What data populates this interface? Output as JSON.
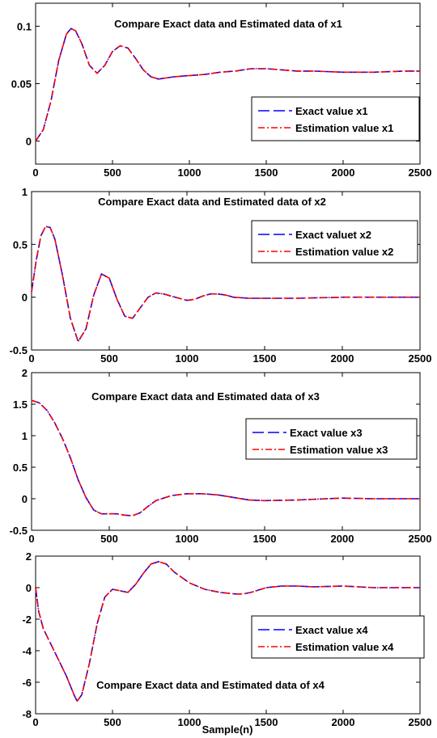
{
  "figure": {
    "xlabel": "Sample(n)"
  },
  "colors": {
    "exact": "#0000ff",
    "estimated": "#ff0000",
    "axis": "#000000",
    "background": "#ffffff"
  },
  "chart_data": [
    {
      "type": "line",
      "title": "Compare Exact data and Estimated data of x1",
      "xlabel": "",
      "ylabel": "",
      "xlim": [
        0,
        2500
      ],
      "ylim": [
        -0.02,
        0.12
      ],
      "xticks": [
        0,
        500,
        1000,
        1500,
        2000,
        2500
      ],
      "yticks": [
        0,
        0.05,
        0.1
      ],
      "ytick_labels": [
        "0",
        "0.05",
        "0.1"
      ],
      "grid": false,
      "legend_position": "lower-right",
      "x": [
        0,
        50,
        100,
        150,
        200,
        230,
        260,
        300,
        350,
        400,
        450,
        500,
        550,
        600,
        650,
        700,
        750,
        800,
        850,
        900,
        1000,
        1100,
        1200,
        1300,
        1400,
        1500,
        1600,
        1700,
        1800,
        2000,
        2200,
        2400,
        2500
      ],
      "series": [
        {
          "name": "Exact value x1",
          "style": "dashed",
          "color": "#0000ff",
          "values": [
            0,
            0.01,
            0.035,
            0.07,
            0.093,
            0.098,
            0.096,
            0.085,
            0.066,
            0.059,
            0.066,
            0.078,
            0.083,
            0.081,
            0.072,
            0.062,
            0.056,
            0.054,
            0.055,
            0.056,
            0.057,
            0.058,
            0.06,
            0.061,
            0.063,
            0.063,
            0.062,
            0.061,
            0.061,
            0.06,
            0.06,
            0.061,
            0.061
          ]
        },
        {
          "name": "Estimation value x1",
          "style": "dash-dot",
          "color": "#ff0000",
          "values": [
            0,
            0.01,
            0.035,
            0.07,
            0.093,
            0.098,
            0.096,
            0.085,
            0.066,
            0.059,
            0.066,
            0.078,
            0.083,
            0.081,
            0.072,
            0.062,
            0.056,
            0.054,
            0.055,
            0.056,
            0.057,
            0.058,
            0.06,
            0.061,
            0.063,
            0.063,
            0.062,
            0.061,
            0.061,
            0.06,
            0.06,
            0.061,
            0.061
          ]
        }
      ]
    },
    {
      "type": "line",
      "title": "Compare Exact data and Estimated data of x2",
      "xlabel": "",
      "ylabel": "",
      "xlim": [
        0,
        2500
      ],
      "ylim": [
        -0.5,
        1
      ],
      "xticks": [
        0,
        500,
        1000,
        1500,
        2000,
        2500
      ],
      "yticks": [
        -0.5,
        0,
        0.5,
        1
      ],
      "ytick_labels": [
        "-0.5",
        "0",
        "0.5",
        "1"
      ],
      "grid": false,
      "legend_position": "top-right",
      "x": [
        0,
        30,
        60,
        90,
        120,
        150,
        200,
        250,
        300,
        350,
        400,
        450,
        500,
        550,
        600,
        650,
        700,
        750,
        800,
        850,
        900,
        1000,
        1050,
        1100,
        1150,
        1200,
        1250,
        1300,
        1400,
        1500,
        1700,
        2000,
        2200,
        2500
      ],
      "series": [
        {
          "name": "Exact valuet x2",
          "style": "dashed",
          "color": "#0000ff",
          "values": [
            0.05,
            0.35,
            0.58,
            0.67,
            0.66,
            0.55,
            0.2,
            -0.2,
            -0.42,
            -0.3,
            0.02,
            0.22,
            0.18,
            -0.02,
            -0.18,
            -0.2,
            -0.1,
            0.0,
            0.04,
            0.03,
            0.01,
            -0.03,
            -0.02,
            0.01,
            0.03,
            0.03,
            0.02,
            0.0,
            -0.01,
            -0.01,
            -0.01,
            0.0,
            0.0,
            0.0
          ]
        },
        {
          "name": "Estimation value x2",
          "style": "dash-dot",
          "color": "#ff0000",
          "values": [
            0.05,
            0.35,
            0.58,
            0.67,
            0.66,
            0.55,
            0.2,
            -0.2,
            -0.42,
            -0.3,
            0.02,
            0.22,
            0.18,
            -0.02,
            -0.18,
            -0.2,
            -0.1,
            0.0,
            0.04,
            0.03,
            0.01,
            -0.03,
            -0.02,
            0.01,
            0.03,
            0.03,
            0.02,
            0.0,
            -0.01,
            -0.01,
            -0.01,
            0.0,
            0.0,
            0.0
          ]
        }
      ]
    },
    {
      "type": "line",
      "title": "Compare Exact data and Estimated data of x3",
      "xlabel": "",
      "ylabel": "",
      "xlim": [
        0,
        2500
      ],
      "ylim": [
        -0.5,
        2
      ],
      "xticks": [
        0,
        500,
        1000,
        1500,
        2000,
        2500
      ],
      "yticks": [
        -0.5,
        0,
        0.5,
        1,
        1.5,
        2
      ],
      "ytick_labels": [
        "-0.5",
        "0",
        "0.5",
        "1",
        "1.5",
        "2"
      ],
      "grid": false,
      "legend_position": "right",
      "x": [
        0,
        50,
        100,
        150,
        200,
        250,
        300,
        350,
        400,
        450,
        500,
        550,
        600,
        650,
        700,
        750,
        800,
        900,
        1000,
        1100,
        1200,
        1300,
        1400,
        1500,
        1700,
        2000,
        2200,
        2500
      ],
      "series": [
        {
          "name": "Exact value x3",
          "style": "dashed",
          "color": "#0000ff",
          "values": [
            1.56,
            1.52,
            1.4,
            1.2,
            0.95,
            0.65,
            0.3,
            0.02,
            -0.18,
            -0.24,
            -0.24,
            -0.24,
            -0.26,
            -0.27,
            -0.22,
            -0.12,
            -0.03,
            0.05,
            0.08,
            0.08,
            0.06,
            0.02,
            -0.02,
            -0.03,
            -0.02,
            0.01,
            0.0,
            0.0
          ]
        },
        {
          "name": "Estimation value x3",
          "style": "dash-dot",
          "color": "#ff0000",
          "values": [
            1.56,
            1.52,
            1.4,
            1.2,
            0.95,
            0.65,
            0.3,
            0.02,
            -0.18,
            -0.24,
            -0.24,
            -0.24,
            -0.26,
            -0.27,
            -0.22,
            -0.12,
            -0.03,
            0.05,
            0.08,
            0.08,
            0.06,
            0.02,
            -0.02,
            -0.03,
            -0.02,
            0.01,
            0.0,
            0.0
          ]
        }
      ]
    },
    {
      "type": "line",
      "title": "Compare Exact data and Estimated data of x4",
      "xlabel": "Sample(n)",
      "ylabel": "",
      "xlim": [
        0,
        2500
      ],
      "ylim": [
        -8,
        2
      ],
      "xticks": [
        0,
        500,
        1000,
        1500,
        2000,
        2500
      ],
      "yticks": [
        -8,
        -6,
        -4,
        -2,
        0,
        2
      ],
      "ytick_labels": [
        "-8",
        "-6",
        "-4",
        "-2",
        "0",
        "2"
      ],
      "grid": false,
      "legend_position": "lower-right",
      "x": [
        0,
        20,
        50,
        100,
        150,
        200,
        250,
        270,
        300,
        350,
        400,
        450,
        500,
        550,
        600,
        650,
        700,
        750,
        800,
        850,
        900,
        1000,
        1100,
        1200,
        1300,
        1350,
        1400,
        1500,
        1600,
        1700,
        1800,
        2000,
        2200,
        2500
      ],
      "series": [
        {
          "name": "Exact value x4",
          "style": "dashed",
          "color": "#0000ff",
          "values": [
            0,
            -1.5,
            -2.6,
            -3.6,
            -4.6,
            -5.6,
            -6.8,
            -7.2,
            -6.8,
            -4.8,
            -2.3,
            -0.6,
            -0.1,
            -0.2,
            -0.3,
            0.2,
            0.9,
            1.5,
            1.65,
            1.5,
            1.0,
            0.3,
            -0.1,
            -0.3,
            -0.4,
            -0.4,
            -0.3,
            0.0,
            0.1,
            0.1,
            0.05,
            0.1,
            0.0,
            0.0
          ]
        },
        {
          "name": "Estimation value x4",
          "style": "dash-dot",
          "color": "#ff0000",
          "values": [
            0,
            -1.5,
            -2.6,
            -3.6,
            -4.6,
            -5.6,
            -6.8,
            -7.2,
            -6.8,
            -4.8,
            -2.3,
            -0.6,
            -0.1,
            -0.2,
            -0.3,
            0.2,
            0.9,
            1.5,
            1.65,
            1.5,
            1.0,
            0.3,
            -0.1,
            -0.3,
            -0.4,
            -0.4,
            -0.3,
            0.0,
            0.1,
            0.1,
            0.05,
            0.1,
            0.0,
            0.0
          ]
        }
      ]
    }
  ]
}
